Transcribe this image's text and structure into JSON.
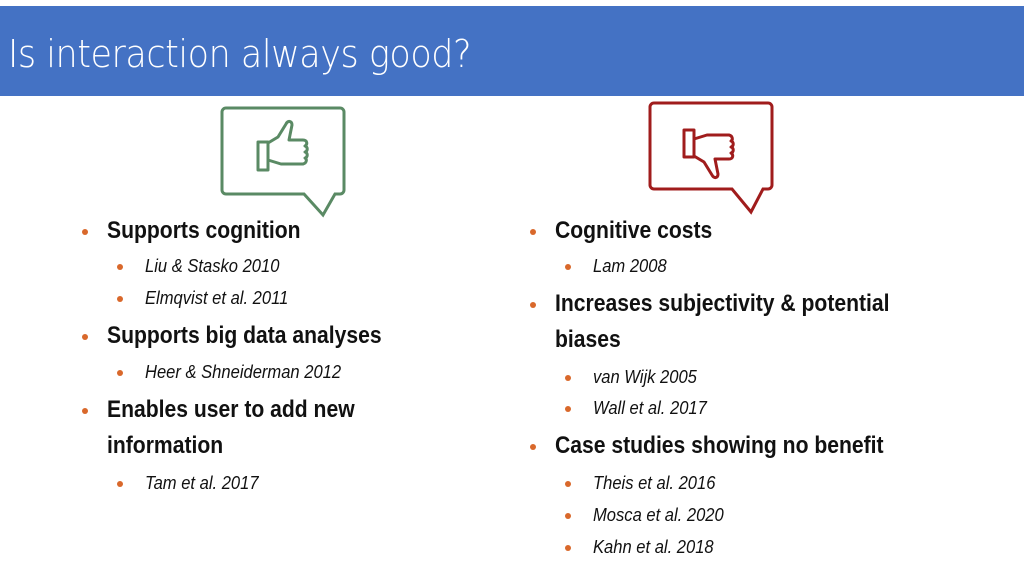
{
  "title": "Is interaction always good?",
  "colors": {
    "header": "#4472c4",
    "bullet": "#d9682b",
    "pro_icon": "#5a8a64",
    "con_icon": "#a01c1c"
  },
  "icons": {
    "pro": "thumbs-up-speech-bubble-icon",
    "con": "thumbs-down-speech-bubble-icon"
  },
  "pros": [
    {
      "level": 1,
      "text": "Supports cognition"
    },
    {
      "level": 2,
      "text": "Liu & Stasko 2010"
    },
    {
      "level": 2,
      "text": "Elmqvist et al. 2011"
    },
    {
      "level": 1,
      "text": "Supports big data analyses"
    },
    {
      "level": 2,
      "text": "Heer & Shneiderman 2012"
    },
    {
      "level": 1,
      "text": "Enables user to add new"
    },
    {
      "level": 0,
      "text": "information"
    },
    {
      "level": 2,
      "text": "Tam et al. 2017"
    }
  ],
  "cons": [
    {
      "level": 1,
      "text": "Cognitive costs"
    },
    {
      "level": 2,
      "text": "Lam 2008"
    },
    {
      "level": 1,
      "text": "Increases subjectivity & potential"
    },
    {
      "level": 0,
      "text": "biases"
    },
    {
      "level": 2,
      "text": "van Wijk 2005"
    },
    {
      "level": 2,
      "text": "Wall et al. 2017"
    },
    {
      "level": 1,
      "text": "Case studies showing no benefit"
    },
    {
      "level": 2,
      "text": "Theis et al. 2016"
    },
    {
      "level": 2,
      "text": "Mosca et al. 2020"
    },
    {
      "level": 2,
      "text": "Kahn et al. 2018"
    }
  ]
}
